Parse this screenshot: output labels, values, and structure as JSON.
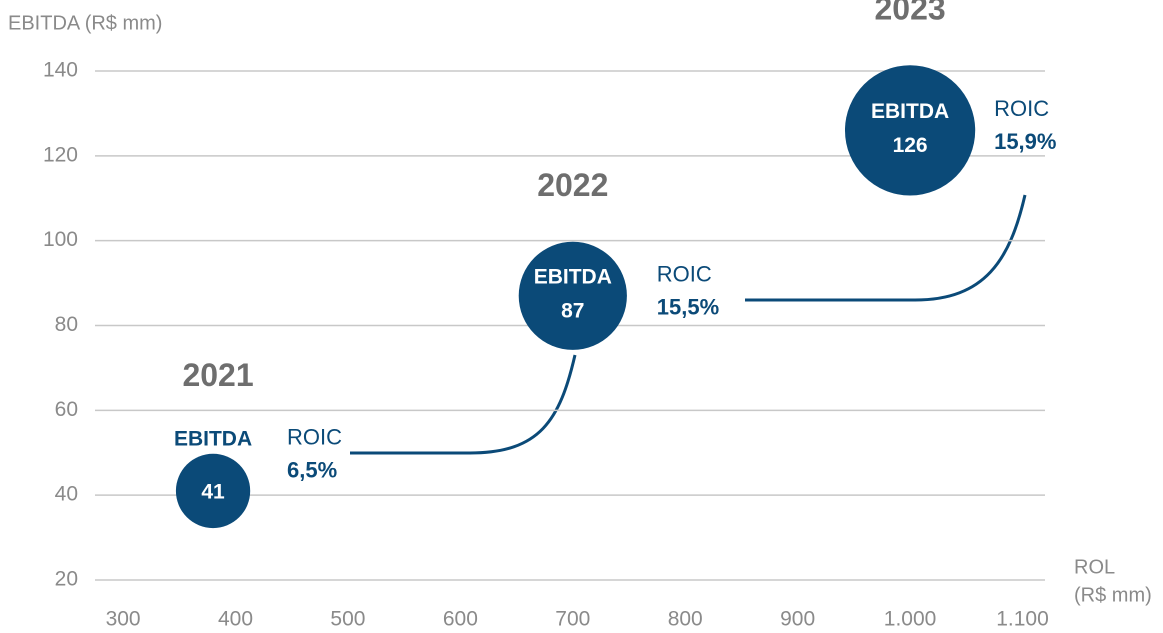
{
  "chart_data": {
    "type": "bubble",
    "y_label": "EBITDA (R$ mm)",
    "x_label": [
      "ROL",
      "(R$ mm)"
    ],
    "xlim": [
      275,
      1120
    ],
    "xticks": [
      300,
      400,
      500,
      600,
      700,
      800,
      900,
      {
        "value": 1000,
        "label": "1.000"
      },
      {
        "value": 1100,
        "label": "1.100"
      }
    ],
    "ylim": [
      20,
      140
    ],
    "yticks": [
      20,
      40,
      60,
      80,
      100,
      120,
      140
    ],
    "grid": true,
    "color": "#0b4a78",
    "point_label": "EBITDA",
    "years": [
      "2021",
      "2022",
      "2023"
    ],
    "x": [
      380,
      700,
      1000
    ],
    "values": [
      41,
      87,
      126
    ],
    "roic": {
      "name": "ROIC",
      "values": [
        6.5,
        15.5,
        15.9
      ],
      "value_labels": [
        "6,5%",
        "15,5%",
        "15,9%"
      ]
    }
  }
}
